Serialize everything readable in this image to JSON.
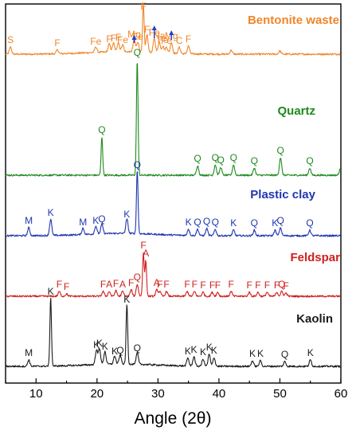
{
  "chart_data": {
    "type": "line",
    "xlabel": "Angle (2θ)",
    "xlim": [
      5,
      60
    ],
    "xticks": [
      10,
      20,
      30,
      40,
      50,
      60
    ],
    "grid": false,
    "series": [
      {
        "name": "Bentonite waste",
        "color": "#f0862a",
        "peaks": [
          {
            "x": 5.8,
            "h": 9,
            "label": "S"
          },
          {
            "x": 13.5,
            "h": 5,
            "label": "F"
          },
          {
            "x": 19.8,
            "h": 7,
            "label": "Fe"
          },
          {
            "x": 22.0,
            "h": 10,
            "label": "F"
          },
          {
            "x": 22.7,
            "h": 11,
            "label": "F"
          },
          {
            "x": 23.5,
            "h": 12,
            "label": "F"
          },
          {
            "x": 24.2,
            "h": 9,
            "label": "Fe"
          },
          {
            "x": 26.1,
            "h": 16,
            "label": "Mg"
          },
          {
            "x": 26.7,
            "h": 13,
            "label": "Fe"
          },
          {
            "x": 27.6,
            "h": 60,
            "label": "F"
          },
          {
            "x": 28.2,
            "h": 22,
            "label": "F"
          },
          {
            "x": 29.4,
            "h": 18,
            "label": "Fe"
          },
          {
            "x": 30.2,
            "h": 14,
            "label": "Na"
          },
          {
            "x": 30.8,
            "h": 9,
            "label": "Fe"
          },
          {
            "x": 31.4,
            "h": 8,
            "label": "Fe"
          },
          {
            "x": 32.2,
            "h": 14,
            "label": "Mg"
          },
          {
            "x": 33.5,
            "h": 8,
            "label": "C"
          },
          {
            "x": 35.0,
            "h": 10,
            "label": "F"
          },
          {
            "x": 42.0,
            "h": 5,
            "label": ""
          },
          {
            "x": 50.0,
            "h": 4,
            "label": ""
          }
        ]
      },
      {
        "name": "Quartz",
        "color": "#1e8a1e",
        "peaks": [
          {
            "x": 20.8,
            "h": 48,
            "label": "Q"
          },
          {
            "x": 26.6,
            "h": 145,
            "label": "Q"
          },
          {
            "x": 36.5,
            "h": 12,
            "label": "Q"
          },
          {
            "x": 39.4,
            "h": 13,
            "label": "Q"
          },
          {
            "x": 40.3,
            "h": 10,
            "label": "Q"
          },
          {
            "x": 42.4,
            "h": 13,
            "label": "Q"
          },
          {
            "x": 45.8,
            "h": 9,
            "label": "Q"
          },
          {
            "x": 50.1,
            "h": 22,
            "label": "Q"
          },
          {
            "x": 54.9,
            "h": 9,
            "label": "Q"
          },
          {
            "x": 59.9,
            "h": 7,
            "label": ""
          }
        ]
      },
      {
        "name": "Plastic clay",
        "color": "#2036b0",
        "peaks": [
          {
            "x": 8.8,
            "h": 10,
            "label": "M"
          },
          {
            "x": 12.4,
            "h": 20,
            "label": "K"
          },
          {
            "x": 17.7,
            "h": 8,
            "label": "M"
          },
          {
            "x": 19.8,
            "h": 10,
            "label": "K"
          },
          {
            "x": 20.8,
            "h": 12,
            "label": "Q"
          },
          {
            "x": 24.9,
            "h": 18,
            "label": "K"
          },
          {
            "x": 26.6,
            "h": 80,
            "label": "Q"
          },
          {
            "x": 35.0,
            "h": 8,
            "label": "K"
          },
          {
            "x": 36.5,
            "h": 8,
            "label": "Q"
          },
          {
            "x": 38.0,
            "h": 9,
            "label": "Q"
          },
          {
            "x": 39.4,
            "h": 8,
            "label": "Q"
          },
          {
            "x": 42.4,
            "h": 7,
            "label": "K"
          },
          {
            "x": 45.8,
            "h": 7,
            "label": "Q"
          },
          {
            "x": 49.2,
            "h": 7,
            "label": "K"
          },
          {
            "x": 50.1,
            "h": 10,
            "label": "Q"
          },
          {
            "x": 54.9,
            "h": 7,
            "label": "Q"
          }
        ]
      },
      {
        "name": "Feldspar",
        "color": "#d0201e",
        "peaks": [
          {
            "x": 13.8,
            "h": 6,
            "label": "F"
          },
          {
            "x": 15.0,
            "h": 3,
            "label": "F"
          },
          {
            "x": 21.0,
            "h": 6,
            "label": "F"
          },
          {
            "x": 22.0,
            "h": 6,
            "label": "A"
          },
          {
            "x": 23.1,
            "h": 7,
            "label": "F"
          },
          {
            "x": 24.2,
            "h": 6,
            "label": "A"
          },
          {
            "x": 25.6,
            "h": 8,
            "label": "F"
          },
          {
            "x": 26.6,
            "h": 15,
            "label": "Q"
          },
          {
            "x": 27.6,
            "h": 55,
            "label": "F"
          },
          {
            "x": 28.0,
            "h": 45,
            "label": "A"
          },
          {
            "x": 29.8,
            "h": 8,
            "label": "A"
          },
          {
            "x": 30.3,
            "h": 6,
            "label": "F"
          },
          {
            "x": 31.4,
            "h": 6,
            "label": "F"
          },
          {
            "x": 34.8,
            "h": 6,
            "label": "F"
          },
          {
            "x": 36.0,
            "h": 6,
            "label": "F"
          },
          {
            "x": 37.4,
            "h": 5,
            "label": "F"
          },
          {
            "x": 38.9,
            "h": 5,
            "label": "F"
          },
          {
            "x": 39.8,
            "h": 5,
            "label": "F"
          },
          {
            "x": 42.0,
            "h": 6,
            "label": "F"
          },
          {
            "x": 45.0,
            "h": 5,
            "label": "F"
          },
          {
            "x": 46.4,
            "h": 5,
            "label": "F"
          },
          {
            "x": 47.9,
            "h": 5,
            "label": "F"
          },
          {
            "x": 49.5,
            "h": 5,
            "label": "F"
          },
          {
            "x": 50.3,
            "h": 6,
            "label": "Q"
          },
          {
            "x": 51.0,
            "h": 4,
            "label": "F"
          }
        ]
      },
      {
        "name": "Kaolin",
        "color": "#1a1a1a",
        "peaks": [
          {
            "x": 8.8,
            "h": 8,
            "label": "M"
          },
          {
            "x": 12.4,
            "h": 85,
            "label": "K"
          },
          {
            "x": 19.9,
            "h": 18,
            "label": "K"
          },
          {
            "x": 20.4,
            "h": 20,
            "label": "K"
          },
          {
            "x": 21.3,
            "h": 16,
            "label": "K"
          },
          {
            "x": 22.9,
            "h": 10,
            "label": "K"
          },
          {
            "x": 23.8,
            "h": 11,
            "label": "Q"
          },
          {
            "x": 24.9,
            "h": 75,
            "label": "K"
          },
          {
            "x": 26.6,
            "h": 14,
            "label": "Q"
          },
          {
            "x": 34.9,
            "h": 10,
            "label": "K"
          },
          {
            "x": 35.9,
            "h": 12,
            "label": "K"
          },
          {
            "x": 37.4,
            "h": 9,
            "label": "K"
          },
          {
            "x": 38.4,
            "h": 15,
            "label": "K"
          },
          {
            "x": 39.2,
            "h": 11,
            "label": "K"
          },
          {
            "x": 45.5,
            "h": 7,
            "label": "K"
          },
          {
            "x": 46.8,
            "h": 7,
            "label": "K"
          },
          {
            "x": 50.8,
            "h": 6,
            "label": "Q"
          },
          {
            "x": 55.0,
            "h": 8,
            "label": "K"
          }
        ]
      }
    ]
  }
}
